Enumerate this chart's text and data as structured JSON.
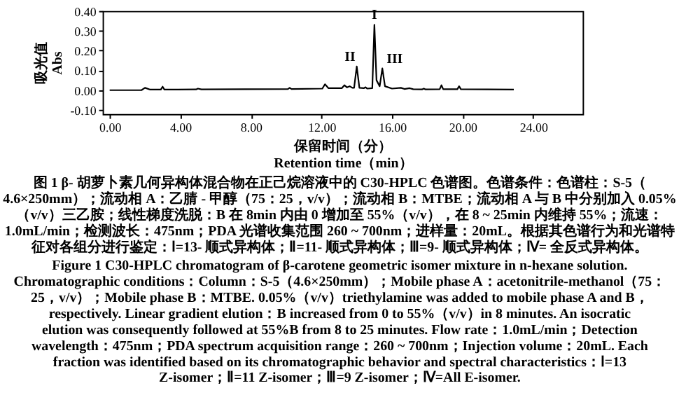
{
  "chart_data": {
    "type": "line",
    "xlabel": "保留时间（分）\nRetention time（min）",
    "ylabel": "吸光值\nAbs",
    "x": [
      0,
      1.8,
      2.0,
      2.3,
      2.9,
      3.0,
      3.1,
      4.9,
      5.0,
      5.2,
      10.1,
      10.2,
      10.3,
      12.05,
      12.2,
      12.4,
      13.15,
      13.3,
      13.45,
      13.6,
      13.75,
      13.85,
      14.0,
      14.15,
      14.4,
      14.5,
      14.6,
      14.88,
      15.0,
      15.12,
      15.3,
      15.45,
      15.6,
      16.0,
      16.5,
      16.7,
      17.0,
      17.2,
      17.7,
      17.8,
      17.9,
      18.7,
      18.8,
      18.9,
      19.7,
      19.8,
      19.9,
      22.9
    ],
    "series": [
      {
        "color": "#000000",
        "values": [
          0,
          0,
          0.012,
          0.003,
          0.003,
          0.018,
          0.003,
          0.004,
          0.008,
          0.004,
          0.006,
          0.012,
          0.006,
          0.008,
          0.03,
          0.01,
          0.01,
          0.025,
          0.014,
          0.02,
          0.012,
          0.012,
          0.12,
          0.012,
          0.01,
          0.015,
          0.008,
          0.01,
          0.33,
          0.05,
          0.02,
          0.11,
          0.02,
          0.008,
          0.012,
          0.006,
          0.01,
          0.005,
          0.004,
          0.008,
          0.004,
          0.005,
          0.025,
          0.005,
          0.005,
          0.02,
          0.005,
          0.003
        ]
      }
    ],
    "xlim": [
      -0.4,
      26.8
    ],
    "ylim": [
      -0.12,
      0.4
    ],
    "xticks": [
      {
        "value": 0,
        "label": "0.00"
      },
      {
        "value": 4,
        "label": "4.00"
      },
      {
        "value": 8,
        "label": "8.00"
      },
      {
        "value": 12,
        "label": "12.00"
      },
      {
        "value": 16,
        "label": "16.00"
      },
      {
        "value": 20,
        "label": "20.00"
      },
      {
        "value": 24,
        "label": "24.00"
      }
    ],
    "yticks": [
      {
        "value": -0.1,
        "label": "-0.10"
      },
      {
        "value": 0,
        "label": "0.00"
      },
      {
        "value": 0.1,
        "label": "0.10"
      },
      {
        "value": 0.2,
        "label": "0.20"
      },
      {
        "value": 0.3,
        "label": "0.30"
      },
      {
        "value": 0.4,
        "label": "0.40"
      }
    ],
    "grid": false,
    "legend": false,
    "marker": "none",
    "line_style": "solid",
    "annotations": [
      {
        "text": "I",
        "x": 15.0,
        "y": 0.33
      },
      {
        "text": "II",
        "x": 14.0,
        "y": 0.12
      },
      {
        "text": "III",
        "x": 15.45,
        "y": 0.11
      },
      "图 1  β- 胡萝卜素几何异构体混合物在正己烷溶液中的 C30-HPLC 色谱图。色谱条件：色谱柱：S-5（4.6×250mm）；流动相 A：乙腈 - 甲醇（75：25，v/v）；流动相 B：MTBE；流动相 A 与 B 中分别加入 0.05%（v/v）三乙胺；线性梯度洗脱：B 在 8min 内由 0 增加至 55%（v/v），在 8 ~ 25min 内维持 55%；流速：1.0mL/min；检测波长：475nm；PDA 光谱收集范围 260 ~ 700nm；进样量：20mL。根据其色谱行为和光谱特征对各组分进行鉴定：Ⅰ=13- 顺式异构体；Ⅱ=11- 顺式异构体；Ⅲ=9- 顺式异构体；Ⅳ= 全反式异构体。",
      "Figure 1  C30-HPLC chromatogram of β-carotene geometric isomer mixture in n-hexane solution. Chromatographic conditions：Column：S-5（4.6×250mm）；Mobile phase A：acetonitrile-methanol（75：25，v/v）；Mobile phase B：MTBE. 0.05%（v/v）triethylamine was added to mobile phase A and B，respectively. Linear gradient elution：B increased from 0 to 55%（v/v）in 8 minutes. An isocratic elution was consequently followed at 55%B from 8 to 25 minutes. Flow rate：1.0mL/min；Detection wavelength：475nm；PDA spectrum acquisition range：260 ~ 700nm；Injection volume：20mL. Each fraction was identified based on its chromatographic behavior and spectral characteristics：Ⅰ=13 Z-isomer；Ⅱ=11 Z-isomer；Ⅲ=9 Z-isomer；Ⅳ=All E-isomer."
    ]
  }
}
